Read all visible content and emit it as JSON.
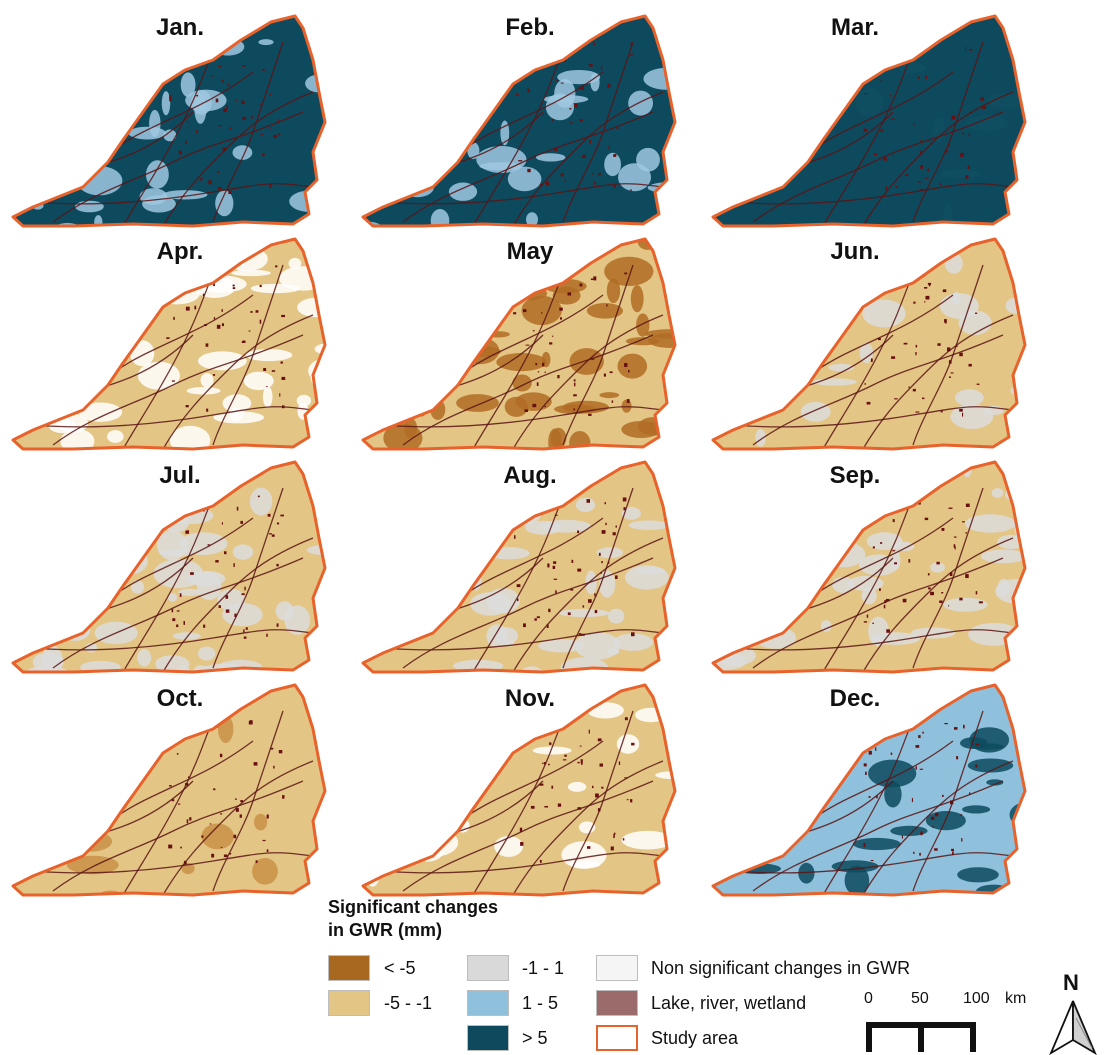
{
  "panels": [
    {
      "id": "jan",
      "title": "Jan.",
      "base": "#0d4a5e",
      "patch": "#9fc8e0",
      "patch_amount": 0.35
    },
    {
      "id": "feb",
      "title": "Feb.",
      "base": "#0d4a5e",
      "patch": "#9fc8e0",
      "patch_amount": 0.45
    },
    {
      "id": "mar",
      "title": "Mar.",
      "base": "#0d4a5e",
      "patch": "#114d62",
      "patch_amount": 0.1
    },
    {
      "id": "apr",
      "title": "Apr.",
      "base": "#e3c585",
      "patch": "#ffffff",
      "patch_amount": 0.55
    },
    {
      "id": "may",
      "title": "May",
      "base": "#e3c585",
      "patch": "#b06c24",
      "patch_amount": 0.55
    },
    {
      "id": "jun",
      "title": "Jun.",
      "base": "#e3c585",
      "patch": "#dcdcdc",
      "patch_amount": 0.25
    },
    {
      "id": "jul",
      "title": "Jul.",
      "base": "#e3c585",
      "patch": "#dcdcdc",
      "patch_amount": 0.5
    },
    {
      "id": "aug",
      "title": "Aug.",
      "base": "#e3c585",
      "patch": "#dcdcdc",
      "patch_amount": 0.5
    },
    {
      "id": "sep",
      "title": "Sep.",
      "base": "#e3c585",
      "patch": "#dcdcdc",
      "patch_amount": 0.4
    },
    {
      "id": "oct",
      "title": "Oct.",
      "base": "#e3c585",
      "patch": "#c99048",
      "patch_amount": 0.12
    },
    {
      "id": "nov",
      "title": "Nov.",
      "base": "#e3c585",
      "patch": "#ffffff",
      "patch_amount": 0.15
    },
    {
      "id": "dec",
      "title": "Dec.",
      "base": "#8fc1dc",
      "patch": "#0d4a5e",
      "patch_amount": 0.3
    }
  ],
  "legend": {
    "title_line1": "Significant changes",
    "title_line2": "in GWR (mm)",
    "items": [
      {
        "id": "lt-5",
        "label": "< -5",
        "color": "#a8681f"
      },
      {
        "id": "m5-m1",
        "label": "-5 - -1",
        "color": "#e3c585"
      },
      {
        "id": "m1-1",
        "label": "-1 - 1",
        "color": "#d9d9d9"
      },
      {
        "id": "1-5",
        "label": "1 - 5",
        "color": "#8fc1dc"
      },
      {
        "id": "gt5",
        "label": "> 5",
        "color": "#0d4a5e"
      },
      {
        "id": "nonsig",
        "label": "Non significant changes in GWR",
        "color": "#f5f5f5"
      },
      {
        "id": "water",
        "label": "Lake, river, wetland",
        "color": "#9b6a6a"
      },
      {
        "id": "study",
        "label": "Study area",
        "color": "#ffffff",
        "outline": "#e8622c"
      }
    ]
  },
  "scale": {
    "labels": [
      "0",
      "50",
      "100"
    ],
    "unit": "km"
  },
  "north": {
    "label": "N"
  },
  "colors": {
    "boundary": "#e8622c",
    "rivers": "#5a1414",
    "urban": "#6a1010"
  }
}
